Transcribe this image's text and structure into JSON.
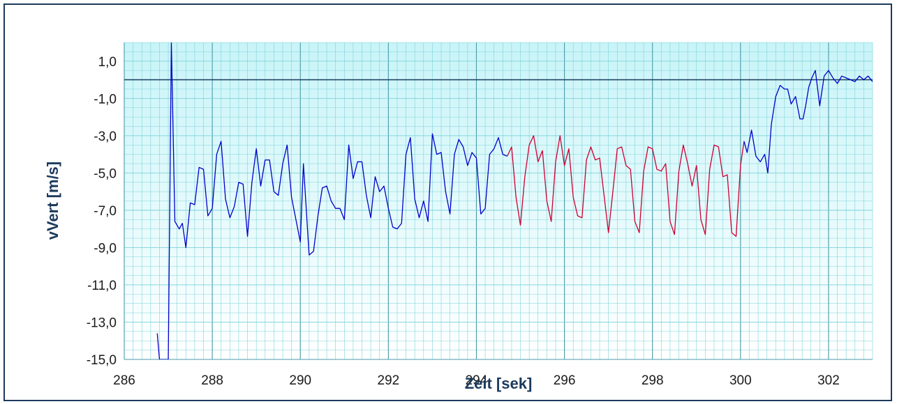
{
  "chart_data": {
    "type": "line",
    "xlabel": "Zeit [sek]",
    "ylabel": "vVert [m/s]",
    "xlim": [
      286,
      303
    ],
    "ylim": [
      -15,
      2
    ],
    "xticks": [
      286,
      288,
      290,
      292,
      294,
      296,
      298,
      300,
      302
    ],
    "xtick_labels": [
      "286",
      "288",
      "290",
      "292",
      "294",
      "296",
      "298",
      "300",
      "302"
    ],
    "yticks": [
      1,
      -1,
      -3,
      -5,
      -7,
      -9,
      -11,
      -13,
      -15
    ],
    "ytick_labels": [
      "1,0",
      "-1,0",
      "-3,0",
      "-5,0",
      "-7,0",
      "-9,0",
      "-11,0",
      "-13,0",
      "-15,0"
    ],
    "reference_line_y": 0,
    "grid": true,
    "legend": "none",
    "colors": {
      "plot_background_top": "#c8f4f8",
      "plot_background_bottom": "#ffffff",
      "grid": "#7fd3d9",
      "blue_series": "#0000cc",
      "red_series": "#cc0033",
      "frame": "#1b3a5c"
    },
    "series": [
      {
        "color": "#0000cc",
        "x": [
          286.75,
          286.8,
          287.0,
          287.07,
          287.15,
          287.25,
          287.32,
          287.4,
          287.5,
          287.6,
          287.7,
          287.8,
          287.9,
          288.0,
          288.1,
          288.2,
          288.3,
          288.4,
          288.5,
          288.6,
          288.7,
          288.8,
          288.9,
          289.0,
          289.1,
          289.2,
          289.3,
          289.4,
          289.5,
          289.6,
          289.7,
          289.8,
          289.9,
          290.0,
          290.07,
          290.2,
          290.3,
          290.4,
          290.5,
          290.6,
          290.7,
          290.8,
          290.9,
          291.0,
          291.1,
          291.2,
          291.3,
          291.4,
          291.5,
          291.6,
          291.7,
          291.8,
          291.9,
          292.0,
          292.1,
          292.2,
          292.3,
          292.4,
          292.5,
          292.6,
          292.7,
          292.8,
          292.9,
          293.0,
          293.1,
          293.2,
          293.3,
          293.4,
          293.5,
          293.6,
          293.7,
          293.8,
          293.9,
          294.0,
          294.1,
          294.2,
          294.3,
          294.4,
          294.5,
          294.6,
          294.7
        ],
        "values": [
          -13.6,
          -15.0,
          -15.0,
          2.0,
          -7.6,
          -8.0,
          -7.7,
          -9.0,
          -6.6,
          -6.7,
          -4.7,
          -4.8,
          -7.3,
          -6.9,
          -4.0,
          -3.3,
          -6.4,
          -7.4,
          -6.8,
          -5.5,
          -5.6,
          -8.4,
          -5.5,
          -3.7,
          -5.7,
          -4.3,
          -4.3,
          -6.0,
          -6.2,
          -4.5,
          -3.5,
          -6.3,
          -7.5,
          -8.7,
          -4.5,
          -9.4,
          -9.2,
          -7.3,
          -5.8,
          -5.7,
          -6.5,
          -6.9,
          -6.9,
          -7.5,
          -3.5,
          -5.3,
          -4.4,
          -4.4,
          -6.2,
          -7.4,
          -5.2,
          -6.0,
          -5.7,
          -6.9,
          -7.9,
          -8.0,
          -7.7,
          -4.0,
          -3.1,
          -6.4,
          -7.4,
          -6.5,
          -7.6,
          -2.9,
          -4.0,
          -3.9,
          -6.0,
          -7.2,
          -4.0,
          -3.2,
          -3.6,
          -4.6,
          -3.9,
          -4.2,
          -7.2,
          -6.9,
          -4.0,
          -3.7,
          -3.1,
          -4.0,
          -4.1
        ]
      },
      {
        "color": "#cc0033",
        "x": [
          294.7,
          294.8,
          294.9,
          295.0,
          295.1,
          295.2,
          295.3,
          295.4,
          295.5,
          295.6,
          295.7,
          295.8,
          295.9,
          296.0,
          296.1,
          296.2,
          296.3,
          296.4,
          296.5,
          296.6,
          296.7,
          296.8,
          296.9,
          297.0,
          297.1,
          297.2,
          297.3,
          297.4,
          297.5,
          297.6,
          297.7,
          297.8,
          297.9,
          298.0,
          298.1,
          298.2,
          298.3,
          298.4,
          298.5,
          298.6,
          298.7,
          298.8,
          298.9,
          299.0,
          299.1,
          299.2,
          299.3,
          299.4,
          299.5,
          299.6,
          299.7,
          299.8,
          299.9,
          300.0,
          300.08
        ],
        "values": [
          -4.1,
          -3.6,
          -6.3,
          -7.8,
          -5.2,
          -3.5,
          -3.0,
          -4.4,
          -3.8,
          -6.5,
          -7.6,
          -4.4,
          -3.0,
          -4.6,
          -3.7,
          -6.3,
          -7.3,
          -7.4,
          -4.3,
          -3.6,
          -4.3,
          -4.2,
          -6.2,
          -8.2,
          -6.0,
          -3.7,
          -3.6,
          -4.6,
          -4.8,
          -7.6,
          -8.2,
          -4.9,
          -3.6,
          -3.7,
          -4.8,
          -4.9,
          -4.5,
          -7.6,
          -8.3,
          -4.9,
          -3.5,
          -4.5,
          -5.7,
          -4.6,
          -7.5,
          -8.3,
          -4.8,
          -3.5,
          -3.6,
          -5.2,
          -5.1,
          -8.2,
          -8.4,
          -4.6,
          -3.3
        ]
      },
      {
        "color": "#0000cc",
        "x": [
          300.08,
          300.15,
          300.25,
          300.35,
          300.45,
          300.55,
          300.62,
          300.7,
          300.8,
          300.9,
          301.0,
          301.07,
          301.15,
          301.25,
          301.35,
          301.42,
          301.48,
          301.55,
          301.62,
          301.7,
          301.8,
          301.9,
          302.0,
          302.1,
          302.2,
          302.3,
          302.4,
          302.5,
          302.6,
          302.7,
          302.8,
          302.9,
          303.0
        ],
        "values": [
          -3.3,
          -3.9,
          -2.7,
          -4.1,
          -4.4,
          -4.0,
          -5.0,
          -2.4,
          -0.9,
          -0.3,
          -0.5,
          -0.5,
          -1.3,
          -0.9,
          -2.1,
          -2.1,
          -1.4,
          -0.4,
          0.1,
          0.5,
          -1.4,
          0.2,
          0.5,
          0.1,
          -0.2,
          0.2,
          0.1,
          0.0,
          -0.1,
          0.2,
          0.0,
          0.2,
          -0.1
        ]
      }
    ]
  }
}
